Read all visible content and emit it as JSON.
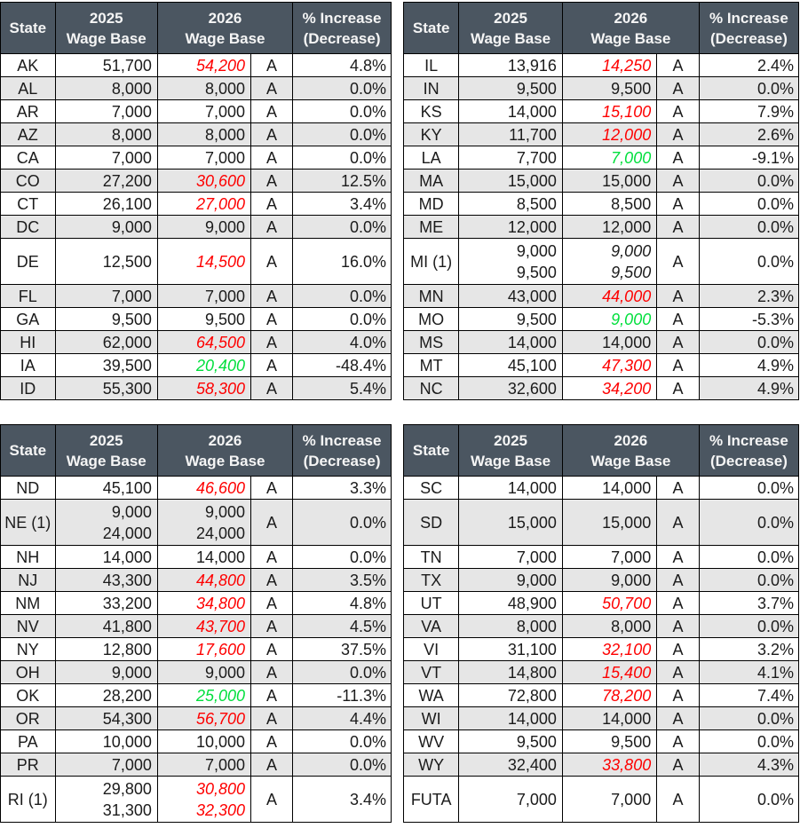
{
  "colors": {
    "header_bg": "#4b5661",
    "header_text": "#f5f5f5",
    "row_alt_bg": "#e6e6e6",
    "row_bg": "#ffffff",
    "increase_color": "#fe0000",
    "decrease_color": "#00df3c",
    "text_color": "#1b1b1b",
    "border_color": "#000000"
  },
  "header": {
    "state": "State",
    "col2025": "2025\nWage Base",
    "col2026": "2026\nWage Base",
    "pct": "% Increase\n(Decrease)"
  },
  "tables": [
    {
      "position": "top-left",
      "rows": [
        {
          "state": "AK",
          "v25": "51,700",
          "v26": "54,200",
          "chg": "increase",
          "flag": "A",
          "pct": "4.8%"
        },
        {
          "state": "AL",
          "v25": "8,000",
          "v26": "8,000",
          "chg": "none",
          "flag": "A",
          "pct": "0.0%"
        },
        {
          "state": "AR",
          "v25": "7,000",
          "v26": "7,000",
          "chg": "none",
          "flag": "A",
          "pct": "0.0%"
        },
        {
          "state": "AZ",
          "v25": "8,000",
          "v26": "8,000",
          "chg": "none",
          "flag": "A",
          "pct": "0.0%"
        },
        {
          "state": "CA",
          "v25": "7,000",
          "v26": "7,000",
          "chg": "none",
          "flag": "A",
          "pct": "0.0%"
        },
        {
          "state": "CO",
          "v25": "27,200",
          "v26": "30,600",
          "chg": "increase",
          "flag": "A",
          "pct": "12.5%"
        },
        {
          "state": "CT",
          "v25": "26,100",
          "v26": "27,000",
          "chg": "increase",
          "flag": "A",
          "pct": "3.4%"
        },
        {
          "state": "DC",
          "v25": "9,000",
          "v26": "9,000",
          "chg": "none",
          "flag": "A",
          "pct": "0.0%"
        },
        {
          "state": "DE",
          "v25": "12,500",
          "v26": "14,500",
          "chg": "increase",
          "flag": "A",
          "pct": "16.0%",
          "tall": true
        },
        {
          "state": "FL",
          "v25": "7,000",
          "v26": "7,000",
          "chg": "none",
          "flag": "A",
          "pct": "0.0%"
        },
        {
          "state": "GA",
          "v25": "9,500",
          "v26": "9,500",
          "chg": "none",
          "flag": "A",
          "pct": "0.0%"
        },
        {
          "state": "HI",
          "v25": "62,000",
          "v26": "64,500",
          "chg": "increase",
          "flag": "A",
          "pct": "4.0%"
        },
        {
          "state": "IA",
          "v25": "39,500",
          "v26": "20,400",
          "chg": "decrease",
          "flag": "A",
          "pct": "-48.4%"
        },
        {
          "state": "ID",
          "v25": "55,300",
          "v26": "58,300",
          "chg": "increase",
          "flag": "A",
          "pct": "5.4%"
        }
      ]
    },
    {
      "position": "top-right",
      "rows": [
        {
          "state": "IL",
          "v25": "13,916",
          "v26": "14,250",
          "chg": "increase",
          "flag": "A",
          "pct": "2.4%"
        },
        {
          "state": "IN",
          "v25": "9,500",
          "v26": "9,500",
          "chg": "none",
          "flag": "A",
          "pct": "0.0%"
        },
        {
          "state": "KS",
          "v25": "14,000",
          "v26": "15,100",
          "chg": "increase",
          "flag": "A",
          "pct": "7.9%"
        },
        {
          "state": "KY",
          "v25": "11,700",
          "v26": "12,000",
          "chg": "increase",
          "flag": "A",
          "pct": "2.6%"
        },
        {
          "state": "LA",
          "v25": "7,700",
          "v26": "7,000",
          "chg": "decrease",
          "flag": "A",
          "pct": "-9.1%"
        },
        {
          "state": "MA",
          "v25": "15,000",
          "v26": "15,000",
          "chg": "none",
          "flag": "A",
          "pct": "0.0%"
        },
        {
          "state": "MD",
          "v25": "8,500",
          "v26": "8,500",
          "chg": "none",
          "flag": "A",
          "pct": "0.0%"
        },
        {
          "state": "ME",
          "v25": "12,000",
          "v26": "12,000",
          "chg": "none",
          "flag": "A",
          "pct": "0.0%"
        },
        {
          "state": "MI (1)",
          "v25": "9,000\n9,500",
          "v26": "9,000\n9,500",
          "chg": "italic",
          "flag": "A",
          "pct": "0.0%",
          "tall": true
        },
        {
          "state": "MN",
          "v25": "43,000",
          "v26": "44,000",
          "chg": "increase",
          "flag": "A",
          "pct": "2.3%"
        },
        {
          "state": "MO",
          "v25": "9,500",
          "v26": "9,000",
          "chg": "decrease",
          "flag": "A",
          "pct": "-5.3%"
        },
        {
          "state": "MS",
          "v25": "14,000",
          "v26": "14,000",
          "chg": "none",
          "flag": "A",
          "pct": "0.0%"
        },
        {
          "state": "MT",
          "v25": "45,100",
          "v26": "47,300",
          "chg": "increase",
          "flag": "A",
          "pct": "4.9%"
        },
        {
          "state": "NC",
          "v25": "32,600",
          "v26": "34,200",
          "chg": "increase",
          "flag": "A",
          "pct": "4.9%",
          "white26": true
        }
      ]
    },
    {
      "position": "bottom-left",
      "rows": [
        {
          "state": "ND",
          "v25": "45,100",
          "v26": "46,600",
          "chg": "increase",
          "flag": "A",
          "pct": "3.3%"
        },
        {
          "state": "NE (1)",
          "v25": "9,000\n24,000",
          "v26": "9,000\n24,000",
          "chg": "none",
          "flag": "A",
          "pct": "0.0%",
          "tall": true
        },
        {
          "state": "NH",
          "v25": "14,000",
          "v26": "14,000",
          "chg": "none",
          "flag": "A",
          "pct": "0.0%"
        },
        {
          "state": "NJ",
          "v25": "43,300",
          "v26": "44,800",
          "chg": "increase",
          "flag": "A",
          "pct": "3.5%"
        },
        {
          "state": "NM",
          "v25": "33,200",
          "v26": "34,800",
          "chg": "increase",
          "flag": "A",
          "pct": "4.8%"
        },
        {
          "state": "NV",
          "v25": "41,800",
          "v26": "43,700",
          "chg": "increase",
          "flag": "A",
          "pct": "4.5%"
        },
        {
          "state": "NY",
          "v25": "12,800",
          "v26": "17,600",
          "chg": "increase",
          "flag": "A",
          "pct": "37.5%"
        },
        {
          "state": "OH",
          "v25": "9,000",
          "v26": "9,000",
          "chg": "none",
          "flag": "A",
          "pct": "0.0%"
        },
        {
          "state": "OK",
          "v25": "28,200",
          "v26": "25,000",
          "chg": "decrease",
          "flag": "A",
          "pct": "-11.3%"
        },
        {
          "state": "OR",
          "v25": "54,300",
          "v26": "56,700",
          "chg": "increase",
          "flag": "A",
          "pct": "4.4%"
        },
        {
          "state": "PA",
          "v25": "10,000",
          "v26": "10,000",
          "chg": "none",
          "flag": "A",
          "pct": "0.0%"
        },
        {
          "state": "PR",
          "v25": "7,000",
          "v26": "7,000",
          "chg": "none",
          "flag": "A",
          "pct": "0.0%"
        },
        {
          "state": "RI (1)",
          "v25": "29,800\n31,300",
          "v26": "30,800\n32,300",
          "chg": "increase",
          "flag": "A",
          "pct": "3.4%",
          "tall": true
        }
      ]
    },
    {
      "position": "bottom-right",
      "rows": [
        {
          "state": "SC",
          "v25": "14,000",
          "v26": "14,000",
          "chg": "none",
          "flag": "A",
          "pct": "0.0%"
        },
        {
          "state": "SD",
          "v25": "15,000",
          "v26": "15,000",
          "chg": "none",
          "flag": "A",
          "pct": "0.0%",
          "tall": true
        },
        {
          "state": "TN",
          "v25": "7,000",
          "v26": "7,000",
          "chg": "none",
          "flag": "A",
          "pct": "0.0%"
        },
        {
          "state": "TX",
          "v25": "9,000",
          "v26": "9,000",
          "chg": "none",
          "flag": "A",
          "pct": "0.0%"
        },
        {
          "state": "UT",
          "v25": "48,900",
          "v26": "50,700",
          "chg": "increase",
          "flag": "A",
          "pct": "3.7%"
        },
        {
          "state": "VA",
          "v25": "8,000",
          "v26": "8,000",
          "chg": "none",
          "flag": "A",
          "pct": "0.0%"
        },
        {
          "state": "VI",
          "v25": "31,100",
          "v26": "32,100",
          "chg": "increase",
          "flag": "A",
          "pct": "3.2%"
        },
        {
          "state": "VT",
          "v25": "14,800",
          "v26": "15,400",
          "chg": "increase",
          "flag": "A",
          "pct": "4.1%"
        },
        {
          "state": "WA",
          "v25": "72,800",
          "v26": "78,200",
          "chg": "increase",
          "flag": "A",
          "pct": "7.4%"
        },
        {
          "state": "WI",
          "v25": "14,000",
          "v26": "14,000",
          "chg": "none",
          "flag": "A",
          "pct": "0.0%"
        },
        {
          "state": "WV",
          "v25": "9,500",
          "v26": "9,500",
          "chg": "none",
          "flag": "A",
          "pct": "0.0%"
        },
        {
          "state": "WY",
          "v25": "32,400",
          "v26": "33,800",
          "chg": "increase",
          "flag": "A",
          "pct": "4.3%"
        },
        {
          "state": "FUTA",
          "v25": "7,000",
          "v26": "7,000",
          "chg": "none",
          "flag": "A",
          "pct": "0.0%",
          "tall": true
        }
      ]
    }
  ]
}
